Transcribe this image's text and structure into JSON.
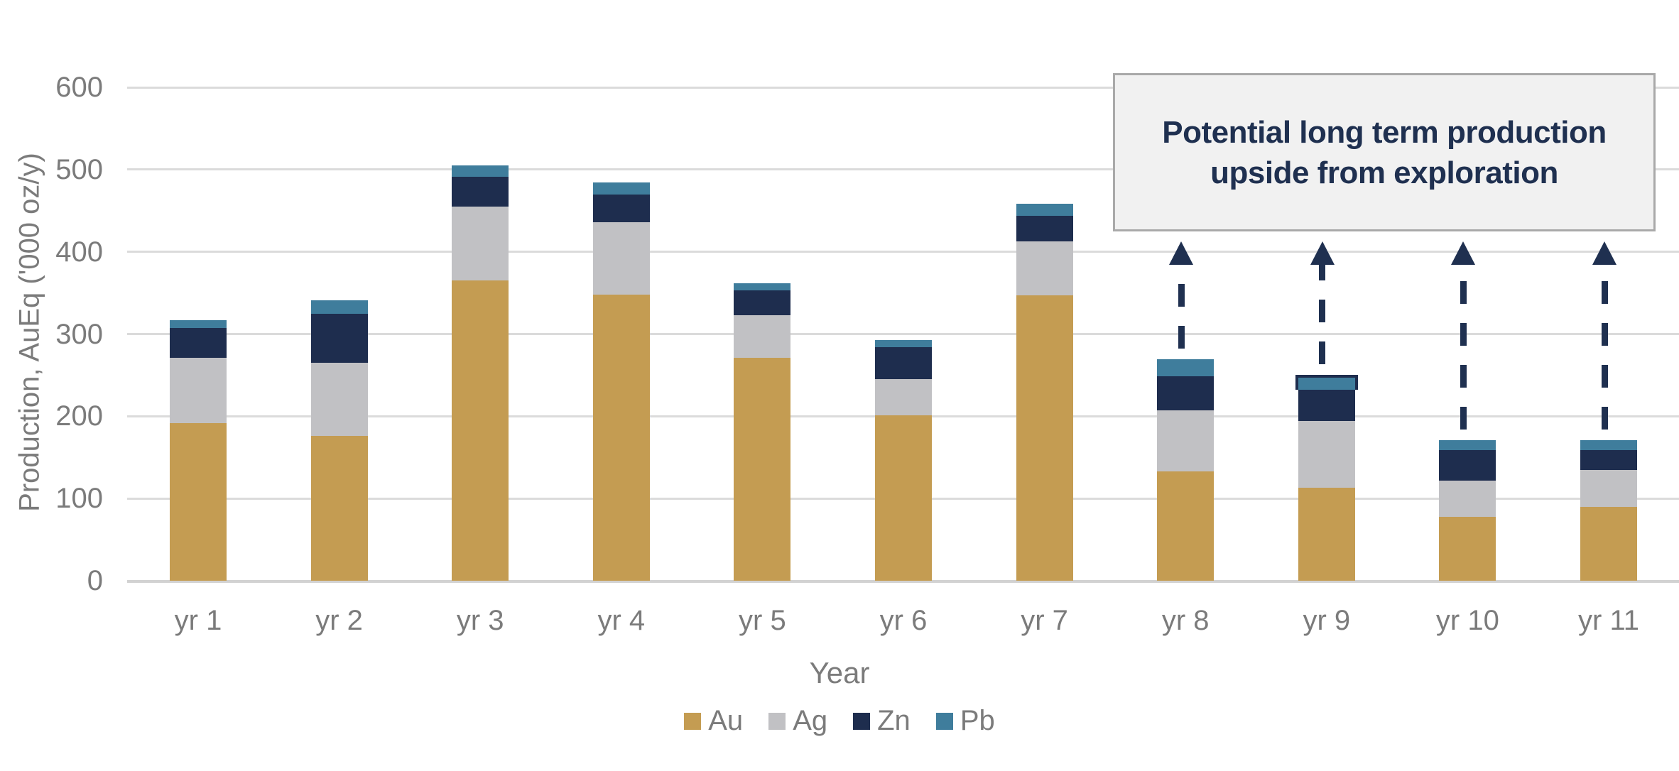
{
  "chart_data": {
    "type": "bar",
    "stacked": true,
    "title": "",
    "xlabel": "Year",
    "ylabel": "Production, AuEq ('000 oz/y)",
    "ylim": [
      0,
      600
    ],
    "yticks": [
      0,
      100,
      200,
      300,
      400,
      500,
      600
    ],
    "grid": true,
    "legend_position": "bottom",
    "categories": [
      "yr 1",
      "yr 2",
      "yr 3",
      "yr 4",
      "yr 5",
      "yr 6",
      "yr 7",
      "yr 8",
      "yr 9",
      "yr 10",
      "yr 11"
    ],
    "series": [
      {
        "name": "Au",
        "color": "#C49C52",
        "values": [
          192,
          176,
          365,
          348,
          271,
          201,
          347,
          133,
          113,
          78,
          90
        ]
      },
      {
        "name": "Ag",
        "color": "#C1C1C4",
        "values": [
          79,
          89,
          90,
          88,
          52,
          44,
          66,
          74,
          81,
          44,
          45
        ]
      },
      {
        "name": "Zn",
        "color": "#1E2D4E",
        "values": [
          36,
          60,
          36,
          34,
          30,
          39,
          31,
          42,
          38,
          37,
          24
        ]
      },
      {
        "name": "Pb",
        "color": "#3F7D9C",
        "values": [
          10,
          16,
          14,
          14,
          9,
          9,
          14,
          20,
          18,
          12,
          12
        ]
      }
    ],
    "outlined_segment": {
      "category": "yr 9",
      "series": "Pb",
      "outline_color": "#1E2D4E"
    },
    "upside_arrows": {
      "categories": [
        "yr 8",
        "yr 9",
        "yr 10",
        "yr 11"
      ],
      "color": "#1F3050"
    }
  },
  "annotation": {
    "lines": [
      "Potential long term production",
      "upside from exploration"
    ],
    "fill": "#F1F1F1",
    "border_color": "#A9A9A9",
    "text_color": "#1F3050"
  },
  "colors": {
    "background": "#FFFFFF",
    "gridline": "#DBDBDB",
    "axis_text": "#7B7B7B"
  }
}
